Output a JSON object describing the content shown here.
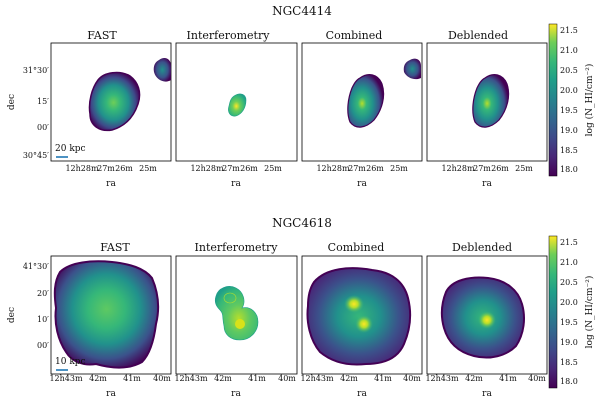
{
  "figure": {
    "rows": [
      {
        "galaxy": "NGC4414",
        "panel_titles": [
          "FAST",
          "Interferometry",
          "Combined",
          "Deblended"
        ],
        "scale_bar_label": "20 kpc",
        "xlabel": "ra",
        "ylabel": "dec",
        "x_ticks": [
          "12h28m",
          "27m",
          "26m",
          "25m"
        ],
        "y_ticks": [
          "31°30′",
          "15′",
          "00′",
          "30°45′"
        ],
        "colorbar": {
          "label": "log (N_HI/cm⁻²)",
          "ticks": [
            "21.5",
            "21.0",
            "20.5",
            "20.0",
            "19.5",
            "19.0",
            "18.5",
            "18.0"
          ]
        }
      },
      {
        "galaxy": "NGC4618",
        "panel_titles": [
          "FAST",
          "Interferometry",
          "Combined",
          "Deblended"
        ],
        "scale_bar_label": "10 kpc",
        "xlabel": "ra",
        "ylabel": "dec",
        "x_ticks": [
          "12h43m",
          "42m",
          "41m",
          "40m"
        ],
        "y_ticks": [
          "41°30′",
          "20′",
          "10′",
          "00′"
        ],
        "colorbar": {
          "label": "log (N_HI/cm⁻²)",
          "ticks": [
            "21.5",
            "21.0",
            "20.5",
            "20.0",
            "19.5",
            "19.0",
            "18.5",
            "18.0"
          ]
        }
      }
    ]
  },
  "chart_data": {
    "type": "heatmap",
    "description_units": "log column density of neutral hydrogen",
    "colormap": "viridis",
    "color_range": [
      17.8,
      21.5
    ],
    "panels": [
      {
        "galaxy": "NGC4414",
        "method": "FAST",
        "peak": 20.2,
        "floor": 18.0
      },
      {
        "galaxy": "NGC4414",
        "method": "Interferometry",
        "peak": 20.5,
        "floor": 19.3
      },
      {
        "galaxy": "NGC4414",
        "method": "Combined",
        "peak": 20.6,
        "floor": 18.0
      },
      {
        "galaxy": "NGC4414",
        "method": "Deblended",
        "peak": 20.6,
        "floor": 18.0
      },
      {
        "galaxy": "NGC4618",
        "method": "FAST",
        "peak": 20.3,
        "floor": 17.9
      },
      {
        "galaxy": "NGC4618",
        "method": "Interferometry",
        "peak": 20.7,
        "floor": 19.4
      },
      {
        "galaxy": "NGC4618",
        "method": "Combined",
        "peak": 20.8,
        "floor": 17.9
      },
      {
        "galaxy": "NGC4618",
        "method": "Deblended",
        "peak": 20.8,
        "floor": 17.9
      }
    ]
  },
  "colors": {
    "viridis_low": "#440154",
    "viridis_mid": "#21918c",
    "viridis_high": "#fde725",
    "scale_bar": "#1f77b4"
  }
}
